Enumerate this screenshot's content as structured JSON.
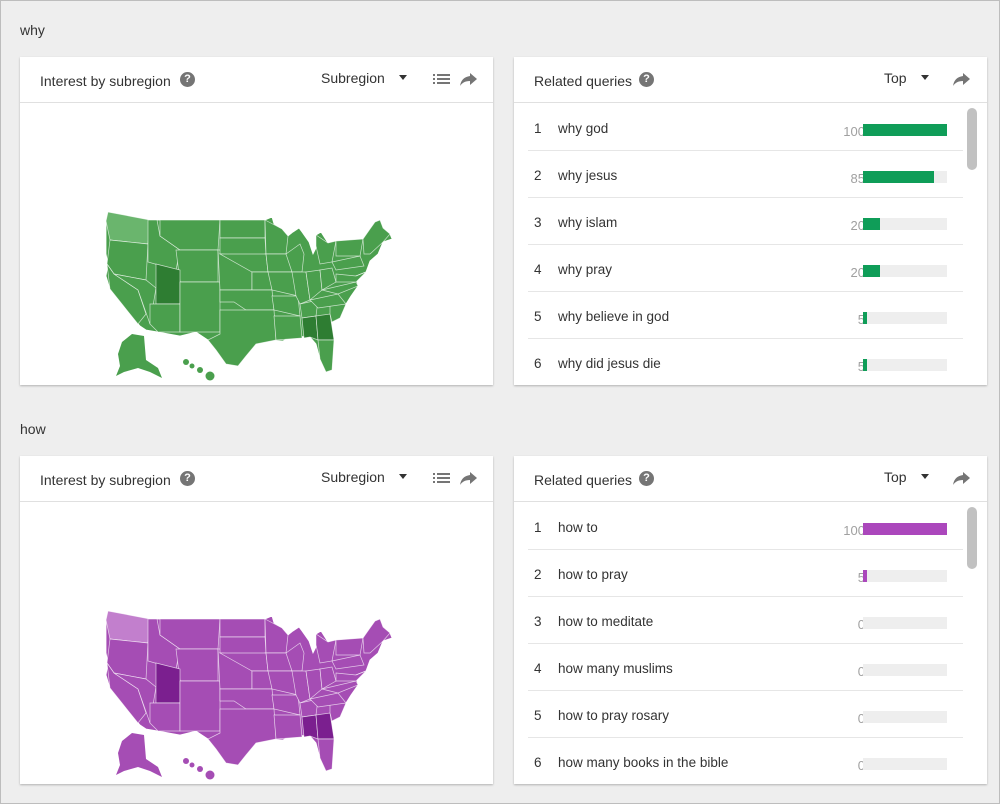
{
  "sections": [
    {
      "title": "why",
      "color": "#0f9d58",
      "map_fill": "#4a9f4d",
      "map_dark": "#2e7d32",
      "map_light": "#6ab56d",
      "map_card": {
        "title": "Interest by subregion",
        "help_icon": "help-icon",
        "dropdown": "Subregion",
        "icons": [
          "list-icon",
          "share-icon"
        ]
      },
      "queries_card": {
        "title": "Related queries",
        "help_icon": "help-icon",
        "dropdown": "Top",
        "icons": [
          "share-icon"
        ],
        "items": [
          {
            "rank": "1",
            "text": "why god",
            "value": "100",
            "pct": 100
          },
          {
            "rank": "2",
            "text": "why jesus",
            "value": "85",
            "pct": 85
          },
          {
            "rank": "3",
            "text": "why islam",
            "value": "20",
            "pct": 20
          },
          {
            "rank": "4",
            "text": "why pray",
            "value": "20",
            "pct": 20
          },
          {
            "rank": "5",
            "text": "why believe in god",
            "value": "5",
            "pct": 5
          },
          {
            "rank": "6",
            "text": "why did jesus die",
            "value": "5",
            "pct": 5
          }
        ]
      }
    },
    {
      "title": "how",
      "color": "#ab47bc",
      "map_fill": "#a54db4",
      "map_dark": "#7b1f8f",
      "map_light": "#c27fcd",
      "map_card": {
        "title": "Interest by subregion",
        "help_icon": "help-icon",
        "dropdown": "Subregion",
        "icons": [
          "list-icon",
          "share-icon"
        ]
      },
      "queries_card": {
        "title": "Related queries",
        "help_icon": "help-icon",
        "dropdown": "Top",
        "icons": [
          "share-icon"
        ],
        "items": [
          {
            "rank": "1",
            "text": "how to",
            "value": "100",
            "pct": 100
          },
          {
            "rank": "2",
            "text": "how to pray",
            "value": "5",
            "pct": 5
          },
          {
            "rank": "3",
            "text": "how to meditate",
            "value": "0",
            "pct": 0
          },
          {
            "rank": "4",
            "text": "how many muslims",
            "value": "0",
            "pct": 0
          },
          {
            "rank": "5",
            "text": "how to pray rosary",
            "value": "0",
            "pct": 0
          },
          {
            "rank": "6",
            "text": "how many books in the bible",
            "value": "0",
            "pct": 0
          }
        ]
      }
    }
  ]
}
